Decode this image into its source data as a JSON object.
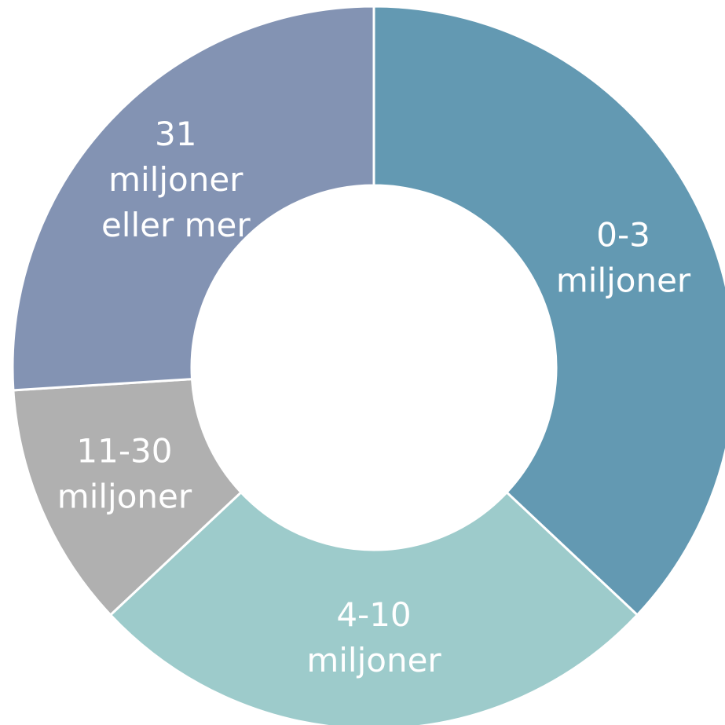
{
  "chart_data": {
    "type": "donut",
    "categories": [
      "0-3 miljoner",
      "4-10 miljoner",
      "11-30 miljoner",
      "31 miljoner eller mer"
    ],
    "values": [
      37,
      26,
      11,
      26
    ],
    "colors": [
      "#6399b2",
      "#9dcbcb",
      "#b0b0b0",
      "#8393b3"
    ]
  }
}
